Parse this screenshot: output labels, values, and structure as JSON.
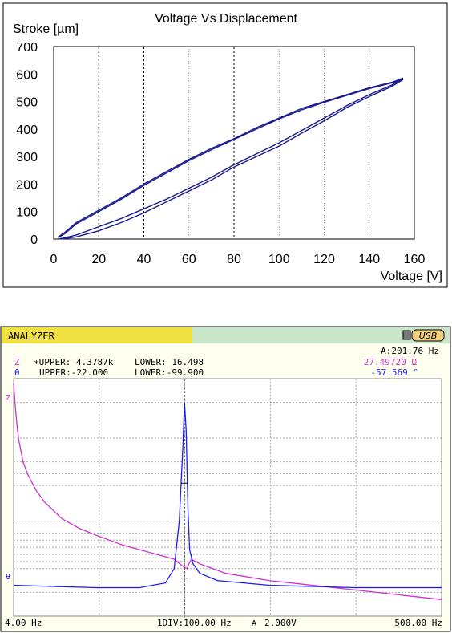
{
  "chart_data": [
    {
      "type": "line",
      "title": "Voltage Vs Displacement",
      "xlabel": "Voltage [V]",
      "ylabel": "Stroke [µm]",
      "xlim": [
        0,
        160
      ],
      "ylim": [
        0,
        700
      ],
      "x_ticks": [
        "0",
        "20",
        "40",
        "60",
        "80",
        "100",
        "120",
        "140",
        "160"
      ],
      "y_ticks": [
        "0",
        "100",
        "200",
        "300",
        "400",
        "500",
        "600",
        "700"
      ],
      "grid": "dotted vertical lines, dashed at 20, 40 and 80",
      "line_color": "#1a1a8c",
      "series": [
        {
          "x": [
            2,
            5,
            10,
            20,
            30,
            40,
            50,
            60,
            70,
            80,
            90,
            100,
            110,
            120,
            130,
            140,
            150,
            155
          ],
          "y": [
            8,
            25,
            60,
            105,
            150,
            200,
            245,
            290,
            330,
            365,
            405,
            440,
            475,
            500,
            525,
            550,
            570,
            585
          ]
        },
        {
          "x": [
            2,
            5,
            10,
            20,
            30,
            40,
            50,
            60,
            70,
            80,
            90,
            100,
            110,
            120,
            130,
            140,
            150,
            155
          ],
          "y": [
            5,
            20,
            55,
            100,
            145,
            195,
            240,
            285,
            325,
            362,
            400,
            437,
            470,
            497,
            522,
            547,
            568,
            580
          ]
        },
        {
          "x": [
            155,
            150,
            140,
            130,
            120,
            110,
            100,
            90,
            80,
            70,
            60,
            50,
            40,
            30,
            20,
            10,
            5,
            2
          ],
          "y": [
            585,
            560,
            525,
            485,
            440,
            395,
            350,
            310,
            270,
            225,
            185,
            145,
            110,
            75,
            45,
            15,
            5,
            0
          ]
        },
        {
          "x": [
            155,
            150,
            140,
            130,
            120,
            110,
            100,
            90,
            80,
            70,
            60,
            50,
            40,
            30,
            20,
            10,
            5,
            2
          ],
          "y": [
            580,
            555,
            518,
            478,
            430,
            385,
            338,
            300,
            262,
            215,
            175,
            135,
            95,
            60,
            30,
            8,
            2,
            0
          ]
        }
      ]
    },
    {
      "type": "line",
      "title": "ANALYZER",
      "badge": "USB",
      "marker_readout": "A:201.76 Hz",
      "z_line": {
        "label": "Z",
        "upper": "∗UPPER: 4.3787k",
        "lower": "LOWER: 16.498",
        "value": "27.49720 Ω"
      },
      "theta_line": {
        "label": "θ",
        "upper": "UPPER:-22.000",
        "lower": "LOWER:-99.900",
        "value": "-57.569   °"
      },
      "x_start_label": "4.00 Hz",
      "x_div_label": "1DIV:100.00 Hz",
      "voltage_label": "2.000V",
      "x_end_label": "500.00 Hz",
      "marker_label": "A",
      "xlim_hz": [
        4,
        500
      ],
      "marker_hz": 201.76,
      "z_axis_label": "Z",
      "theta_axis_label": "θ",
      "z_color": "#cc33cc",
      "theta_color": "#1a1aff",
      "series": [
        {
          "name": "Z",
          "x_hz": [
            4,
            5,
            6,
            8,
            10,
            15,
            20,
            30,
            40,
            60,
            80,
            100,
            130,
            160,
            190,
            200,
            205,
            207,
            210,
            220,
            250,
            300,
            350,
            400,
            450,
            500
          ],
          "y_frac": [
            0.02,
            0.07,
            0.12,
            0.2,
            0.26,
            0.35,
            0.4,
            0.47,
            0.52,
            0.59,
            0.63,
            0.66,
            0.7,
            0.73,
            0.76,
            0.79,
            0.8,
            0.78,
            0.76,
            0.78,
            0.82,
            0.85,
            0.87,
            0.89,
            0.91,
            0.93
          ]
        },
        {
          "name": "θ",
          "x_hz": [
            4,
            50,
            100,
            150,
            180,
            190,
            196,
            200,
            202,
            204,
            206,
            208,
            212,
            216,
            220,
            240,
            300,
            400,
            500
          ],
          "y_frac": [
            0.87,
            0.875,
            0.88,
            0.88,
            0.86,
            0.8,
            0.6,
            0.3,
            0.1,
            0.22,
            0.55,
            0.72,
            0.78,
            0.8,
            0.82,
            0.85,
            0.87,
            0.88,
            0.88
          ]
        }
      ]
    }
  ]
}
